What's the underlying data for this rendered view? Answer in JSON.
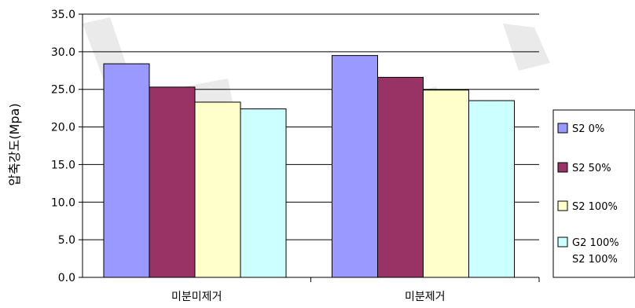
{
  "chart_data": {
    "type": "bar",
    "categories": [
      "미분미제거",
      "미분제거"
    ],
    "series": [
      {
        "name": "S2 0%",
        "color": "#9999FF",
        "values": [
          28.4,
          29.5
        ]
      },
      {
        "name": "S2 50%",
        "color": "#993366",
        "values": [
          25.3,
          26.6
        ]
      },
      {
        "name": "S2 100%",
        "color": "#FFFFCC",
        "values": [
          23.3,
          24.9
        ]
      },
      {
        "name": "G2 100%\nS2 100%",
        "color": "#CCFFFF",
        "values": [
          22.4,
          23.5
        ]
      }
    ],
    "ylabel": "압축강도(Mpa)",
    "xlabel": "",
    "ylim": [
      0,
      35
    ],
    "yticks": [
      "0.0",
      "5.0",
      "10.0",
      "15.0",
      "20.0",
      "25.0",
      "30.0",
      "35.0"
    ],
    "grid": true,
    "legend_position": "right"
  }
}
